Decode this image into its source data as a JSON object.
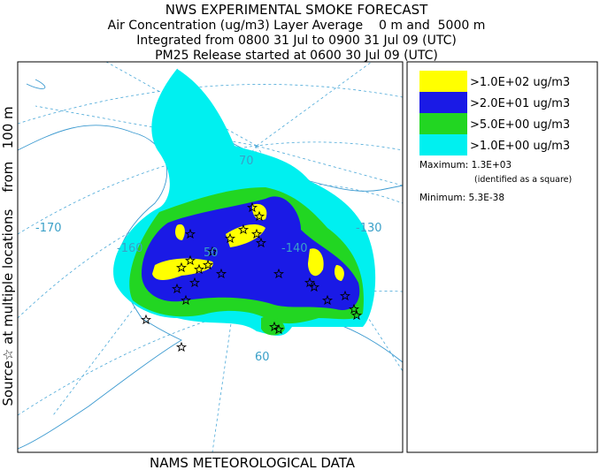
{
  "header": {
    "title": "NWS EXPERIMENTAL SMOKE FORECAST",
    "lines": [
      "Air Concentration (ug/m3) Layer Average    0 m and  5000 m",
      "Integrated from 0800 31 Jul to 0900 31 Jul 09 (UTC)",
      "PM25 Release started at 0600 30 Jul 09 (UTC)"
    ]
  },
  "side_label": "Source☆ at multiple locations    from   100 m",
  "footer": "NAMS METEOROLOGICAL DATA",
  "legend": {
    "items": [
      {
        "label": ">1.0E+02 ug/m3",
        "color": "#ffff00"
      },
      {
        "label": ">2.0E+01 ug/m3",
        "color": "#1a1ae6"
      },
      {
        "label": ">5.0E+00 ug/m3",
        "color": "#22d622"
      },
      {
        "label": ">1.0E+00 ug/m3",
        "color": "#00f0f0"
      }
    ],
    "maximum": "Maximum: 1.3E+03",
    "maximum_note": "(identified as a square)",
    "minimum": "Minimum: 5.3E-38"
  },
  "map": {
    "labels": [
      "-170",
      "-160",
      "50",
      "-140",
      "-130",
      "70",
      "60"
    ]
  }
}
